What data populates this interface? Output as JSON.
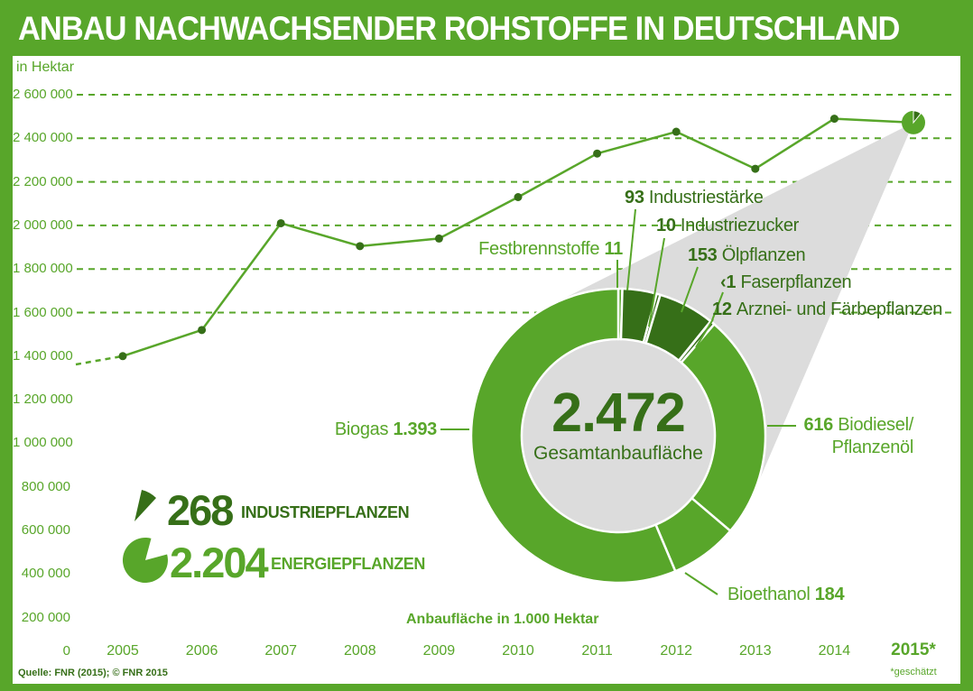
{
  "title": "ANBAU NACHWACHSENDER ROHSTOFFE IN DEUTSCHLAND",
  "colors": {
    "green": "#58a62a",
    "dark_green": "#366f18",
    "gray": "#dcdcdc",
    "white": "#ffffff"
  },
  "y_axis": {
    "unit": "in Hektar",
    "ticks": [
      "2 600 000",
      "2 400 000",
      "2 200 000",
      "2 000 000",
      "1 800 000",
      "1 600 000",
      "1 400 000",
      "1 200 000",
      "1 000 000",
      "800 000",
      "600 000",
      "400 000",
      "200 000",
      "0"
    ]
  },
  "x_axis": {
    "footnote": "*geschätzt"
  },
  "source": "Quelle: FNR (2015); © FNR 2015",
  "legend": {
    "industrie": {
      "value": "268",
      "label": "INDUSTRIEPFLANZEN"
    },
    "energie": {
      "value": "2.204",
      "label": "ENERGIEPFLANZEN"
    }
  },
  "donut": {
    "center_value": "2.472",
    "center_label": "Gesamtanbaufläche",
    "unit_note": "Anbaufläche in 1.000 Hektar",
    "callouts": {
      "festbrennstoffe": {
        "label": "Festbrennstoffe",
        "value": "11"
      },
      "industriestaerke": {
        "value": "93",
        "label": "Industriestärke"
      },
      "industriezucker": {
        "value": "10",
        "label": "Industriezucker"
      },
      "oelpflanzen": {
        "value": "153",
        "label": "Ölpflanzen"
      },
      "faserpflanzen": {
        "value": "‹1",
        "label": "Faserpflanzen"
      },
      "arznei": {
        "value": "12",
        "label": "Arznei- und Färbepflanzen"
      },
      "biogas": {
        "label": "Biogas",
        "value": "1.393"
      },
      "biodiesel": {
        "value": "616",
        "label": "Biodiesel/",
        "label2": "Pflanzenöl"
      },
      "bioethanol": {
        "label": "Bioethanol",
        "value": "184"
      }
    }
  },
  "chart_data": [
    {
      "type": "line",
      "categories": [
        "2005",
        "2006",
        "2007",
        "2008",
        "2009",
        "2010",
        "2011",
        "2012",
        "2013",
        "2014",
        "2015*"
      ],
      "values": [
        1400000,
        1520000,
        2010000,
        1905000,
        1940000,
        2130000,
        2330000,
        2430000,
        2260000,
        2490000,
        2472000
      ],
      "xlabel": "",
      "ylabel": "in Hektar",
      "ylim": [
        0,
        2600000
      ],
      "grid": "dashed horizontal every 200000 from 1600000 to 2600000",
      "marker_last_point": "mini-pie showing Industriepflanzen share, estimated value (2015*)"
    },
    {
      "type": "pie",
      "title": "Gesamtanbaufläche",
      "total": 2472,
      "unit": "1.000 Hektar",
      "segments": [
        {
          "label": "Festbrennstoffe",
          "value": 11,
          "display": "11",
          "color": "#58a62a",
          "group": "Energiepflanzen"
        },
        {
          "label": "Industriestärke",
          "value": 93,
          "display": "93",
          "color": "#366f18",
          "group": "Industriepflanzen"
        },
        {
          "label": "Industriezucker",
          "value": 10,
          "display": "10",
          "color": "#366f18",
          "group": "Industriepflanzen"
        },
        {
          "label": "Ölpflanzen",
          "value": 153,
          "display": "153",
          "color": "#366f18",
          "group": "Industriepflanzen"
        },
        {
          "label": "Faserpflanzen",
          "value": 0.5,
          "display": "‹1",
          "color": "#366f18",
          "group": "Industriepflanzen"
        },
        {
          "label": "Arznei- und Färbepflanzen",
          "value": 12,
          "display": "12",
          "color": "#366f18",
          "group": "Industriepflanzen"
        },
        {
          "label": "Biodiesel/Pflanzenöl",
          "value": 616,
          "display": "616",
          "color": "#58a62a",
          "group": "Energiepflanzen"
        },
        {
          "label": "Bioethanol",
          "value": 184,
          "display": "184",
          "color": "#58a62a",
          "group": "Energiepflanzen"
        },
        {
          "label": "Biogas",
          "value": 1393,
          "display": "1.393",
          "color": "#58a62a",
          "group": "Energiepflanzen"
        }
      ],
      "groups": [
        {
          "label": "INDUSTRIEPFLANZEN",
          "value": 268
        },
        {
          "label": "ENERGIEPFLANZEN",
          "value": 2204
        }
      ]
    }
  ]
}
